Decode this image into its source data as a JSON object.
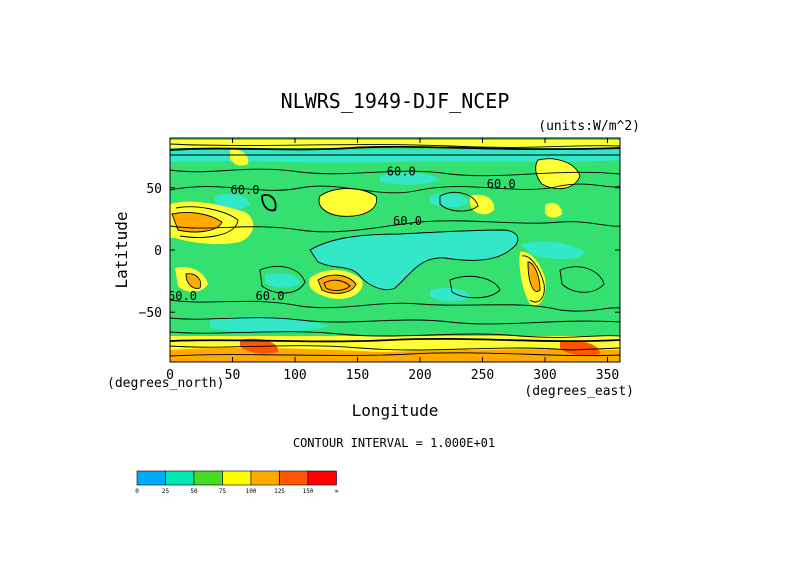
{
  "chart_data": {
    "type": "heatmap",
    "title": "NLWRS_1949-DJF_NCEP",
    "units": "(units:W/m^2)",
    "xlabel": "Longitude",
    "ylabel": "Latitude",
    "x_unit_label": "(degrees_east)",
    "y_unit_label": "(degrees_north)",
    "xlim": [
      0,
      360
    ],
    "ylim": [
      -90,
      90
    ],
    "x_ticks": [
      0,
      50,
      100,
      150,
      200,
      250,
      300,
      350
    ],
    "y_ticks": [
      50,
      0,
      -50
    ],
    "x_tick_labels": [
      "0",
      "50",
      "100",
      "150",
      "200",
      "250",
      "300",
      "350"
    ],
    "y_tick_labels": [
      "50",
      "0",
      "−50"
    ],
    "contour_interval_text": "CONTOUR INTERVAL = 1.000E+01",
    "contour_labels": [
      {
        "text": "60.0",
        "lon": 190,
        "lat": 20
      },
      {
        "text": "60.0",
        "lon": 60,
        "lat": 45
      },
      {
        "text": "60.0",
        "lon": 185,
        "lat": 60
      },
      {
        "text": "60.0",
        "lon": 265,
        "lat": 50
      },
      {
        "text": "60.0",
        "lon": 80,
        "lat": -40
      },
      {
        "text": "60.0",
        "lon": 10,
        "lat": -40
      }
    ],
    "colorbar": {
      "ticks": [
        "0",
        "25",
        "50",
        "75",
        "100",
        "125",
        "150",
        "∞"
      ],
      "colors": [
        "#00aaff",
        "#00e8b0",
        "#44dd22",
        "#ffff00",
        "#ffaa00",
        "#ff5500",
        "#ff0000"
      ]
    },
    "field_colors": {
      "background": "#33e070",
      "low": "#33e8c8",
      "mid": "#ffff33",
      "high": "#ffaa00",
      "very_high": "#ff5500"
    }
  }
}
